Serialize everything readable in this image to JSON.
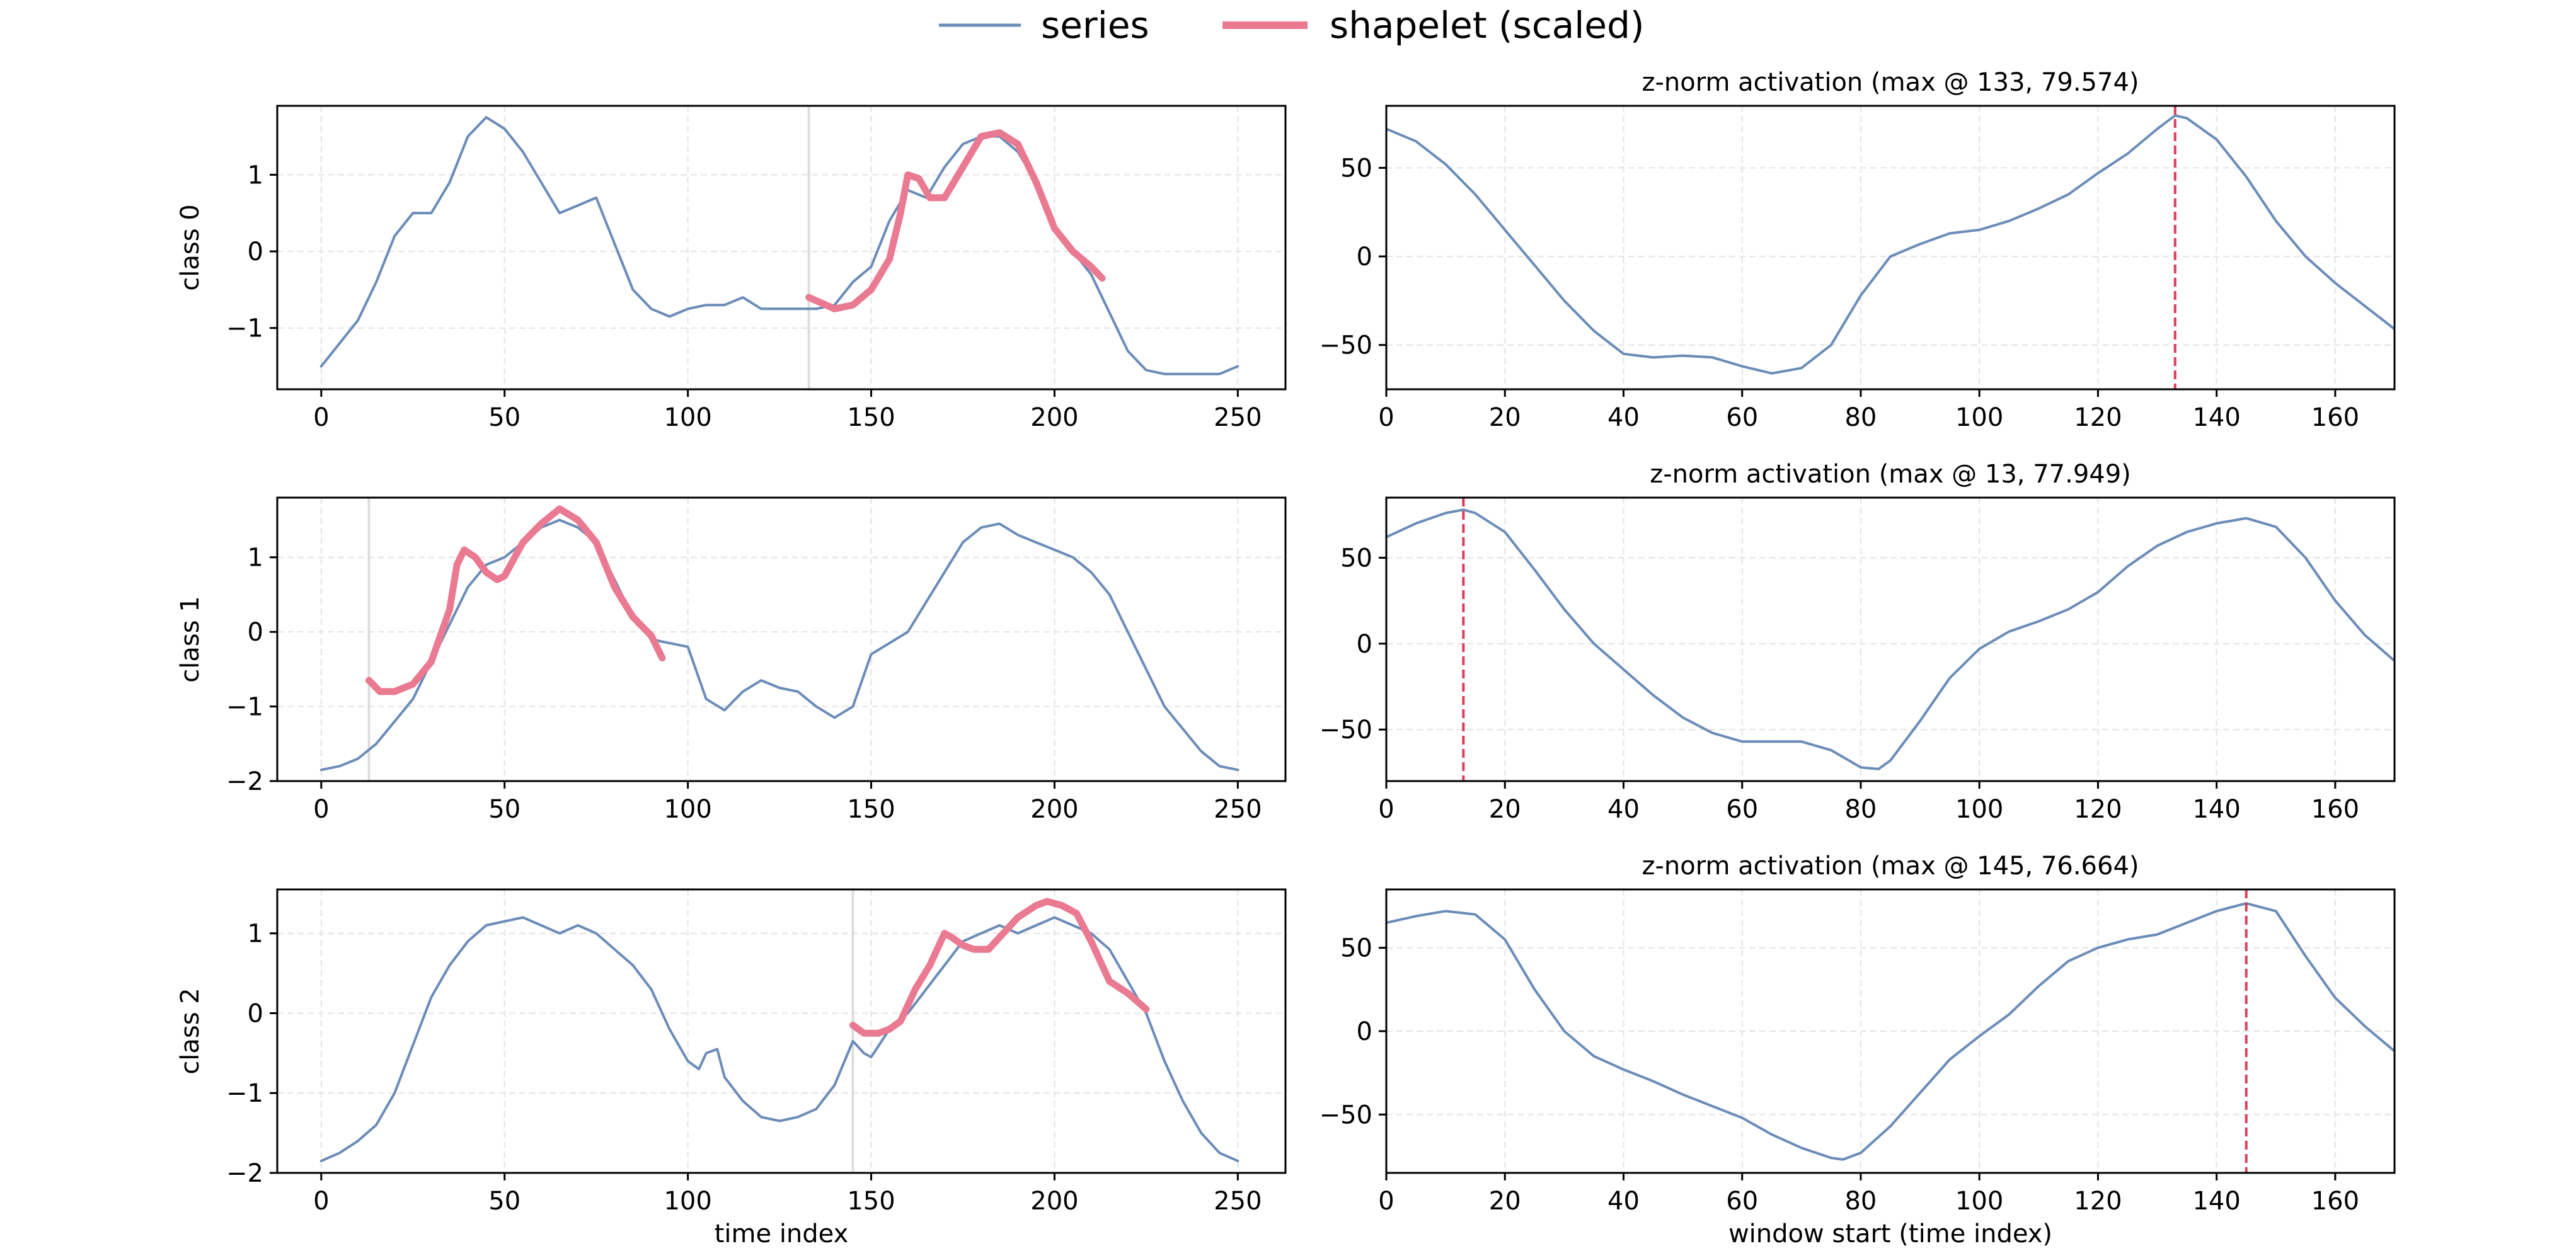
{
  "legend": {
    "position": "top-center",
    "entries": [
      {
        "label": "series",
        "color": "#6b8cb8"
      },
      {
        "label": "shapelet (scaled)",
        "color": "#ea7a92"
      }
    ]
  },
  "colors": {
    "series": "#6b8cb8",
    "shapelet": "#ea7a92",
    "marker": "#dc3d5c",
    "grid": "#e4e4e4",
    "highlight": "#d0d0d0"
  },
  "chart_data": [
    {
      "type": "line",
      "panel": "series-0",
      "ylabel": "class 0",
      "xlabel": "",
      "xlim": [
        -12,
        263
      ],
      "ylim": [
        -1.8,
        1.9
      ],
      "xticks": [
        0,
        50,
        100,
        150,
        200,
        250
      ],
      "yticks": [
        -1,
        0,
        1
      ],
      "grid": true,
      "highlight_x": 133,
      "series": [
        {
          "name": "series",
          "x": [
            0,
            5,
            10,
            15,
            20,
            25,
            30,
            35,
            40,
            45,
            50,
            55,
            60,
            65,
            70,
            75,
            80,
            85,
            90,
            95,
            100,
            105,
            110,
            115,
            120,
            125,
            130,
            135,
            140,
            145,
            150,
            155,
            160,
            165,
            170,
            175,
            180,
            185,
            190,
            195,
            200,
            205,
            210,
            215,
            220,
            225,
            230,
            235,
            240,
            245,
            250
          ],
          "y": [
            -1.5,
            -1.2,
            -0.9,
            -0.4,
            0.2,
            0.5,
            0.5,
            0.9,
            1.5,
            1.75,
            1.6,
            1.3,
            0.9,
            0.5,
            0.6,
            0.7,
            0.1,
            -0.5,
            -0.75,
            -0.85,
            -0.75,
            -0.7,
            -0.7,
            -0.6,
            -0.75,
            -0.75,
            -0.75,
            -0.75,
            -0.7,
            -0.4,
            -0.2,
            0.4,
            0.8,
            0.7,
            1.1,
            1.4,
            1.5,
            1.5,
            1.3,
            0.9,
            0.3,
            0.0,
            -0.3,
            -0.8,
            -1.3,
            -1.55,
            -1.6,
            -1.6,
            -1.6,
            -1.6,
            -1.5
          ]
        },
        {
          "name": "shapelet (scaled)",
          "x": [
            133,
            140,
            145,
            150,
            155,
            158,
            160,
            163,
            166,
            170,
            175,
            180,
            185,
            190,
            195,
            200,
            205,
            210,
            213
          ],
          "y": [
            -0.6,
            -0.75,
            -0.7,
            -0.5,
            -0.1,
            0.5,
            1.0,
            0.95,
            0.7,
            0.7,
            1.1,
            1.5,
            1.55,
            1.4,
            0.9,
            0.3,
            0.0,
            -0.2,
            -0.35
          ]
        }
      ]
    },
    {
      "type": "line",
      "panel": "activation-0",
      "title": "z-norm activation (max @ 133, 79.574)",
      "xlabel": "",
      "xlim": [
        0,
        170
      ],
      "ylim": [
        -75,
        85
      ],
      "xticks": [
        0,
        20,
        40,
        60,
        80,
        100,
        120,
        140,
        160
      ],
      "yticks": [
        -50,
        0,
        50
      ],
      "grid": true,
      "marker_x": 133,
      "series": [
        {
          "x": [
            0,
            5,
            10,
            15,
            20,
            25,
            30,
            35,
            40,
            45,
            50,
            55,
            60,
            65,
            70,
            75,
            80,
            85,
            90,
            95,
            100,
            105,
            110,
            115,
            120,
            125,
            130,
            133,
            135,
            140,
            145,
            150,
            155,
            160,
            165,
            170
          ],
          "y": [
            72,
            65,
            52,
            35,
            15,
            -5,
            -25,
            -42,
            -55,
            -57,
            -56,
            -57,
            -62,
            -66,
            -63,
            -50,
            -22,
            0,
            7,
            13,
            15,
            20,
            27,
            35,
            47,
            58,
            72,
            79.574,
            78,
            66,
            45,
            20,
            0,
            -15,
            -28,
            -41
          ]
        }
      ]
    },
    {
      "type": "line",
      "panel": "series-1",
      "ylabel": "class 1",
      "xlabel": "",
      "xlim": [
        -12,
        263
      ],
      "ylim": [
        -2.0,
        1.8
      ],
      "xticks": [
        0,
        50,
        100,
        150,
        200,
        250
      ],
      "yticks": [
        -2,
        -1,
        0,
        1
      ],
      "grid": true,
      "highlight_x": 13,
      "series": [
        {
          "name": "series",
          "x": [
            0,
            5,
            10,
            15,
            20,
            25,
            30,
            35,
            40,
            45,
            50,
            55,
            60,
            65,
            70,
            75,
            80,
            85,
            90,
            95,
            100,
            105,
            110,
            115,
            120,
            125,
            130,
            135,
            140,
            145,
            150,
            155,
            160,
            165,
            170,
            175,
            180,
            185,
            190,
            195,
            200,
            205,
            210,
            215,
            220,
            225,
            230,
            235,
            240,
            245,
            250
          ],
          "y": [
            -1.85,
            -1.8,
            -1.7,
            -1.5,
            -1.2,
            -0.9,
            -0.4,
            0.1,
            0.6,
            0.9,
            1.0,
            1.2,
            1.4,
            1.5,
            1.4,
            1.2,
            0.7,
            0.2,
            -0.1,
            -0.15,
            -0.2,
            -0.9,
            -1.05,
            -0.8,
            -0.65,
            -0.75,
            -0.8,
            -1.0,
            -1.15,
            -1.0,
            -0.3,
            -0.15,
            0.0,
            0.4,
            0.8,
            1.2,
            1.4,
            1.45,
            1.3,
            1.2,
            1.1,
            1.0,
            0.8,
            0.5,
            0.0,
            -0.5,
            -1.0,
            -1.3,
            -1.6,
            -1.8,
            -1.85
          ]
        },
        {
          "name": "shapelet (scaled)",
          "x": [
            13,
            16,
            20,
            25,
            30,
            35,
            37,
            39,
            42,
            45,
            48,
            50,
            55,
            60,
            65,
            70,
            75,
            80,
            85,
            90,
            93
          ],
          "y": [
            -0.65,
            -0.8,
            -0.8,
            -0.7,
            -0.4,
            0.3,
            0.9,
            1.1,
            1.0,
            0.8,
            0.7,
            0.75,
            1.2,
            1.45,
            1.65,
            1.5,
            1.2,
            0.6,
            0.2,
            -0.05,
            -0.35
          ]
        }
      ]
    },
    {
      "type": "line",
      "panel": "activation-1",
      "title": "z-norm activation (max @ 13, 77.949)",
      "xlabel": "",
      "xlim": [
        0,
        170
      ],
      "ylim": [
        -80,
        85
      ],
      "xticks": [
        0,
        20,
        40,
        60,
        80,
        100,
        120,
        140,
        160
      ],
      "yticks": [
        -50,
        0,
        50
      ],
      "grid": true,
      "marker_x": 13,
      "series": [
        {
          "x": [
            0,
            5,
            10,
            13,
            15,
            20,
            25,
            30,
            35,
            40,
            45,
            50,
            55,
            60,
            65,
            70,
            75,
            80,
            83,
            85,
            90,
            95,
            100,
            105,
            110,
            115,
            120,
            125,
            130,
            135,
            140,
            145,
            150,
            155,
            160,
            165,
            170
          ],
          "y": [
            62,
            70,
            76,
            77.949,
            76,
            65,
            43,
            20,
            0,
            -15,
            -30,
            -43,
            -52,
            -57,
            -57,
            -57,
            -62,
            -72,
            -73,
            -68,
            -45,
            -20,
            -3,
            7,
            13,
            20,
            30,
            45,
            57,
            65,
            70,
            73,
            68,
            50,
            25,
            5,
            -10
          ]
        }
      ]
    },
    {
      "type": "line",
      "panel": "series-2",
      "ylabel": "class 2",
      "xlabel": "time index",
      "xlim": [
        -12,
        263
      ],
      "ylim": [
        -2.0,
        1.55
      ],
      "xticks": [
        0,
        50,
        100,
        150,
        200,
        250
      ],
      "yticks": [
        -2,
        -1,
        0,
        1
      ],
      "grid": true,
      "highlight_x": 145,
      "series": [
        {
          "name": "series",
          "x": [
            0,
            5,
            10,
            15,
            20,
            25,
            30,
            35,
            40,
            45,
            50,
            55,
            60,
            65,
            70,
            75,
            80,
            85,
            90,
            95,
            100,
            103,
            105,
            108,
            110,
            115,
            120,
            125,
            130,
            135,
            140,
            145,
            148,
            150,
            155,
            160,
            165,
            170,
            175,
            180,
            185,
            190,
            195,
            200,
            205,
            210,
            215,
            220,
            225,
            230,
            235,
            240,
            245,
            250
          ],
          "y": [
            -1.85,
            -1.75,
            -1.6,
            -1.4,
            -1.0,
            -0.4,
            0.2,
            0.6,
            0.9,
            1.1,
            1.15,
            1.2,
            1.1,
            1.0,
            1.1,
            1.0,
            0.8,
            0.6,
            0.3,
            -0.2,
            -0.6,
            -0.7,
            -0.5,
            -0.45,
            -0.8,
            -1.1,
            -1.3,
            -1.35,
            -1.3,
            -1.2,
            -0.9,
            -0.35,
            -0.5,
            -0.55,
            -0.2,
            0.0,
            0.3,
            0.6,
            0.9,
            1.0,
            1.1,
            1.0,
            1.1,
            1.2,
            1.1,
            1.0,
            0.8,
            0.4,
            0.0,
            -0.6,
            -1.1,
            -1.5,
            -1.75,
            -1.85
          ]
        },
        {
          "name": "shapelet (scaled)",
          "x": [
            145,
            148,
            152,
            155,
            158,
            162,
            166,
            170,
            172,
            175,
            178,
            182,
            185,
            190,
            195,
            198,
            202,
            206,
            210,
            215,
            220,
            225
          ],
          "y": [
            -0.15,
            -0.25,
            -0.25,
            -0.2,
            -0.1,
            0.3,
            0.6,
            1.0,
            0.95,
            0.85,
            0.8,
            0.8,
            0.95,
            1.2,
            1.35,
            1.4,
            1.35,
            1.25,
            0.9,
            0.4,
            0.25,
            0.05
          ]
        }
      ]
    },
    {
      "type": "line",
      "panel": "activation-2",
      "title": "z-norm activation (max @ 145, 76.664)",
      "xlabel": "window start (time index)",
      "xlim": [
        0,
        170
      ],
      "ylim": [
        -85,
        85
      ],
      "xticks": [
        0,
        20,
        40,
        60,
        80,
        100,
        120,
        140,
        160
      ],
      "yticks": [
        -50,
        0,
        50
      ],
      "grid": true,
      "marker_x": 145,
      "series": [
        {
          "x": [
            0,
            5,
            10,
            15,
            20,
            25,
            30,
            35,
            40,
            45,
            50,
            55,
            60,
            65,
            70,
            75,
            77,
            80,
            85,
            90,
            95,
            100,
            105,
            110,
            115,
            120,
            125,
            130,
            135,
            140,
            145,
            150,
            155,
            160,
            165,
            170
          ],
          "y": [
            65,
            69,
            72,
            70,
            55,
            25,
            0,
            -15,
            -23,
            -30,
            -38,
            -45,
            -52,
            -62,
            -70,
            -76,
            -77,
            -73,
            -57,
            -37,
            -17,
            -3,
            10,
            27,
            42,
            50,
            55,
            58,
            65,
            72,
            76.664,
            72,
            45,
            20,
            3,
            -12
          ]
        }
      ]
    }
  ]
}
